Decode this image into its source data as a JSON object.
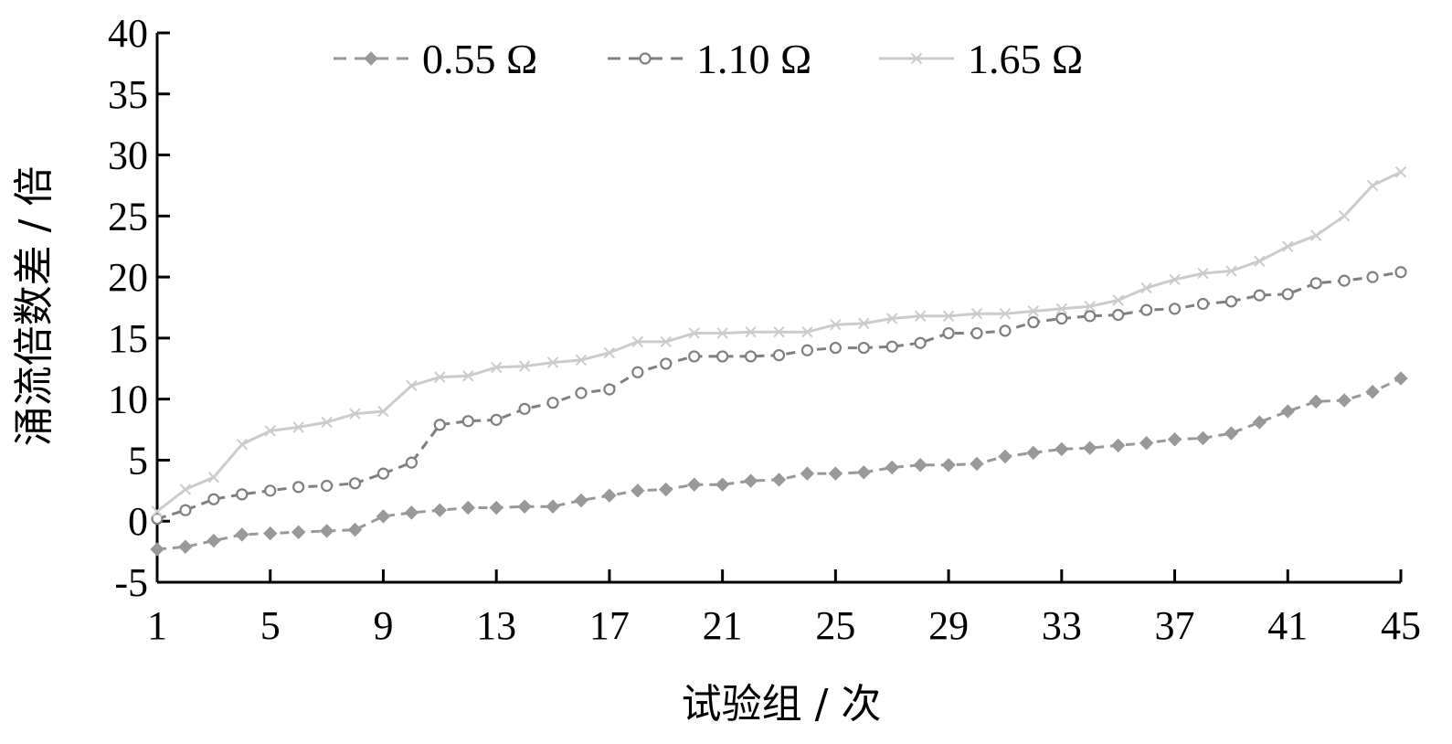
{
  "chart_data": {
    "type": "line",
    "xlabel": "试验组 / 次",
    "ylabel": "涌流倍数差 / 倍",
    "xlim": [
      1,
      45
    ],
    "ylim": [
      -5,
      40
    ],
    "x_ticks": [
      1,
      5,
      9,
      13,
      17,
      21,
      25,
      29,
      33,
      37,
      41,
      45
    ],
    "y_ticks": [
      -5,
      0,
      5,
      10,
      15,
      20,
      25,
      30,
      35,
      40
    ],
    "grid": false,
    "legend_position": "top",
    "x": [
      1,
      2,
      3,
      4,
      5,
      6,
      7,
      8,
      9,
      10,
      11,
      12,
      13,
      14,
      15,
      16,
      17,
      18,
      19,
      20,
      21,
      22,
      23,
      24,
      25,
      26,
      27,
      28,
      29,
      30,
      31,
      32,
      33,
      34,
      35,
      36,
      37,
      38,
      39,
      40,
      41,
      42,
      43,
      44,
      45
    ],
    "series": [
      {
        "name": "0.55 Ω",
        "color": "#999999",
        "line_style": "dashed",
        "marker": "diamond",
        "values": [
          -2.3,
          -2.1,
          -1.6,
          -1.1,
          -1.0,
          -0.9,
          -0.8,
          -0.7,
          0.4,
          0.7,
          0.9,
          1.1,
          1.1,
          1.2,
          1.2,
          1.7,
          2.1,
          2.5,
          2.6,
          3.0,
          3.0,
          3.3,
          3.4,
          3.9,
          3.9,
          4.0,
          4.4,
          4.6,
          4.6,
          4.7,
          5.3,
          5.6,
          5.9,
          6.0,
          6.2,
          6.4,
          6.7,
          6.8,
          7.2,
          8.1,
          9.0,
          9.8,
          9.9,
          10.6,
          11.7
        ]
      },
      {
        "name": "1.10 Ω",
        "color": "#7f7f7f",
        "line_style": "dashed",
        "marker": "circle",
        "values": [
          0.2,
          0.9,
          1.8,
          2.2,
          2.5,
          2.8,
          2.9,
          3.1,
          3.9,
          4.8,
          7.9,
          8.2,
          8.3,
          9.2,
          9.7,
          10.5,
          10.8,
          12.2,
          12.9,
          13.5,
          13.5,
          13.5,
          13.6,
          14.0,
          14.2,
          14.2,
          14.3,
          14.6,
          15.4,
          15.4,
          15.6,
          16.3,
          16.6,
          16.8,
          16.9,
          17.3,
          17.4,
          17.8,
          18.0,
          18.5,
          18.6,
          19.5,
          19.7,
          20.0,
          20.4
        ]
      },
      {
        "name": "1.65 Ω",
        "color": "#cccccc",
        "line_style": "solid",
        "marker": "cross",
        "values": [
          0.8,
          2.6,
          3.6,
          6.3,
          7.4,
          7.7,
          8.1,
          8.8,
          9.0,
          11.1,
          11.8,
          11.9,
          12.6,
          12.7,
          13.0,
          13.2,
          13.8,
          14.7,
          14.7,
          15.4,
          15.4,
          15.5,
          15.5,
          15.5,
          16.1,
          16.2,
          16.6,
          16.8,
          16.8,
          17.0,
          17.0,
          17.2,
          17.4,
          17.6,
          18.1,
          19.1,
          19.8,
          20.3,
          20.5,
          21.3,
          22.5,
          23.4,
          25.0,
          27.5,
          28.6
        ]
      }
    ]
  }
}
